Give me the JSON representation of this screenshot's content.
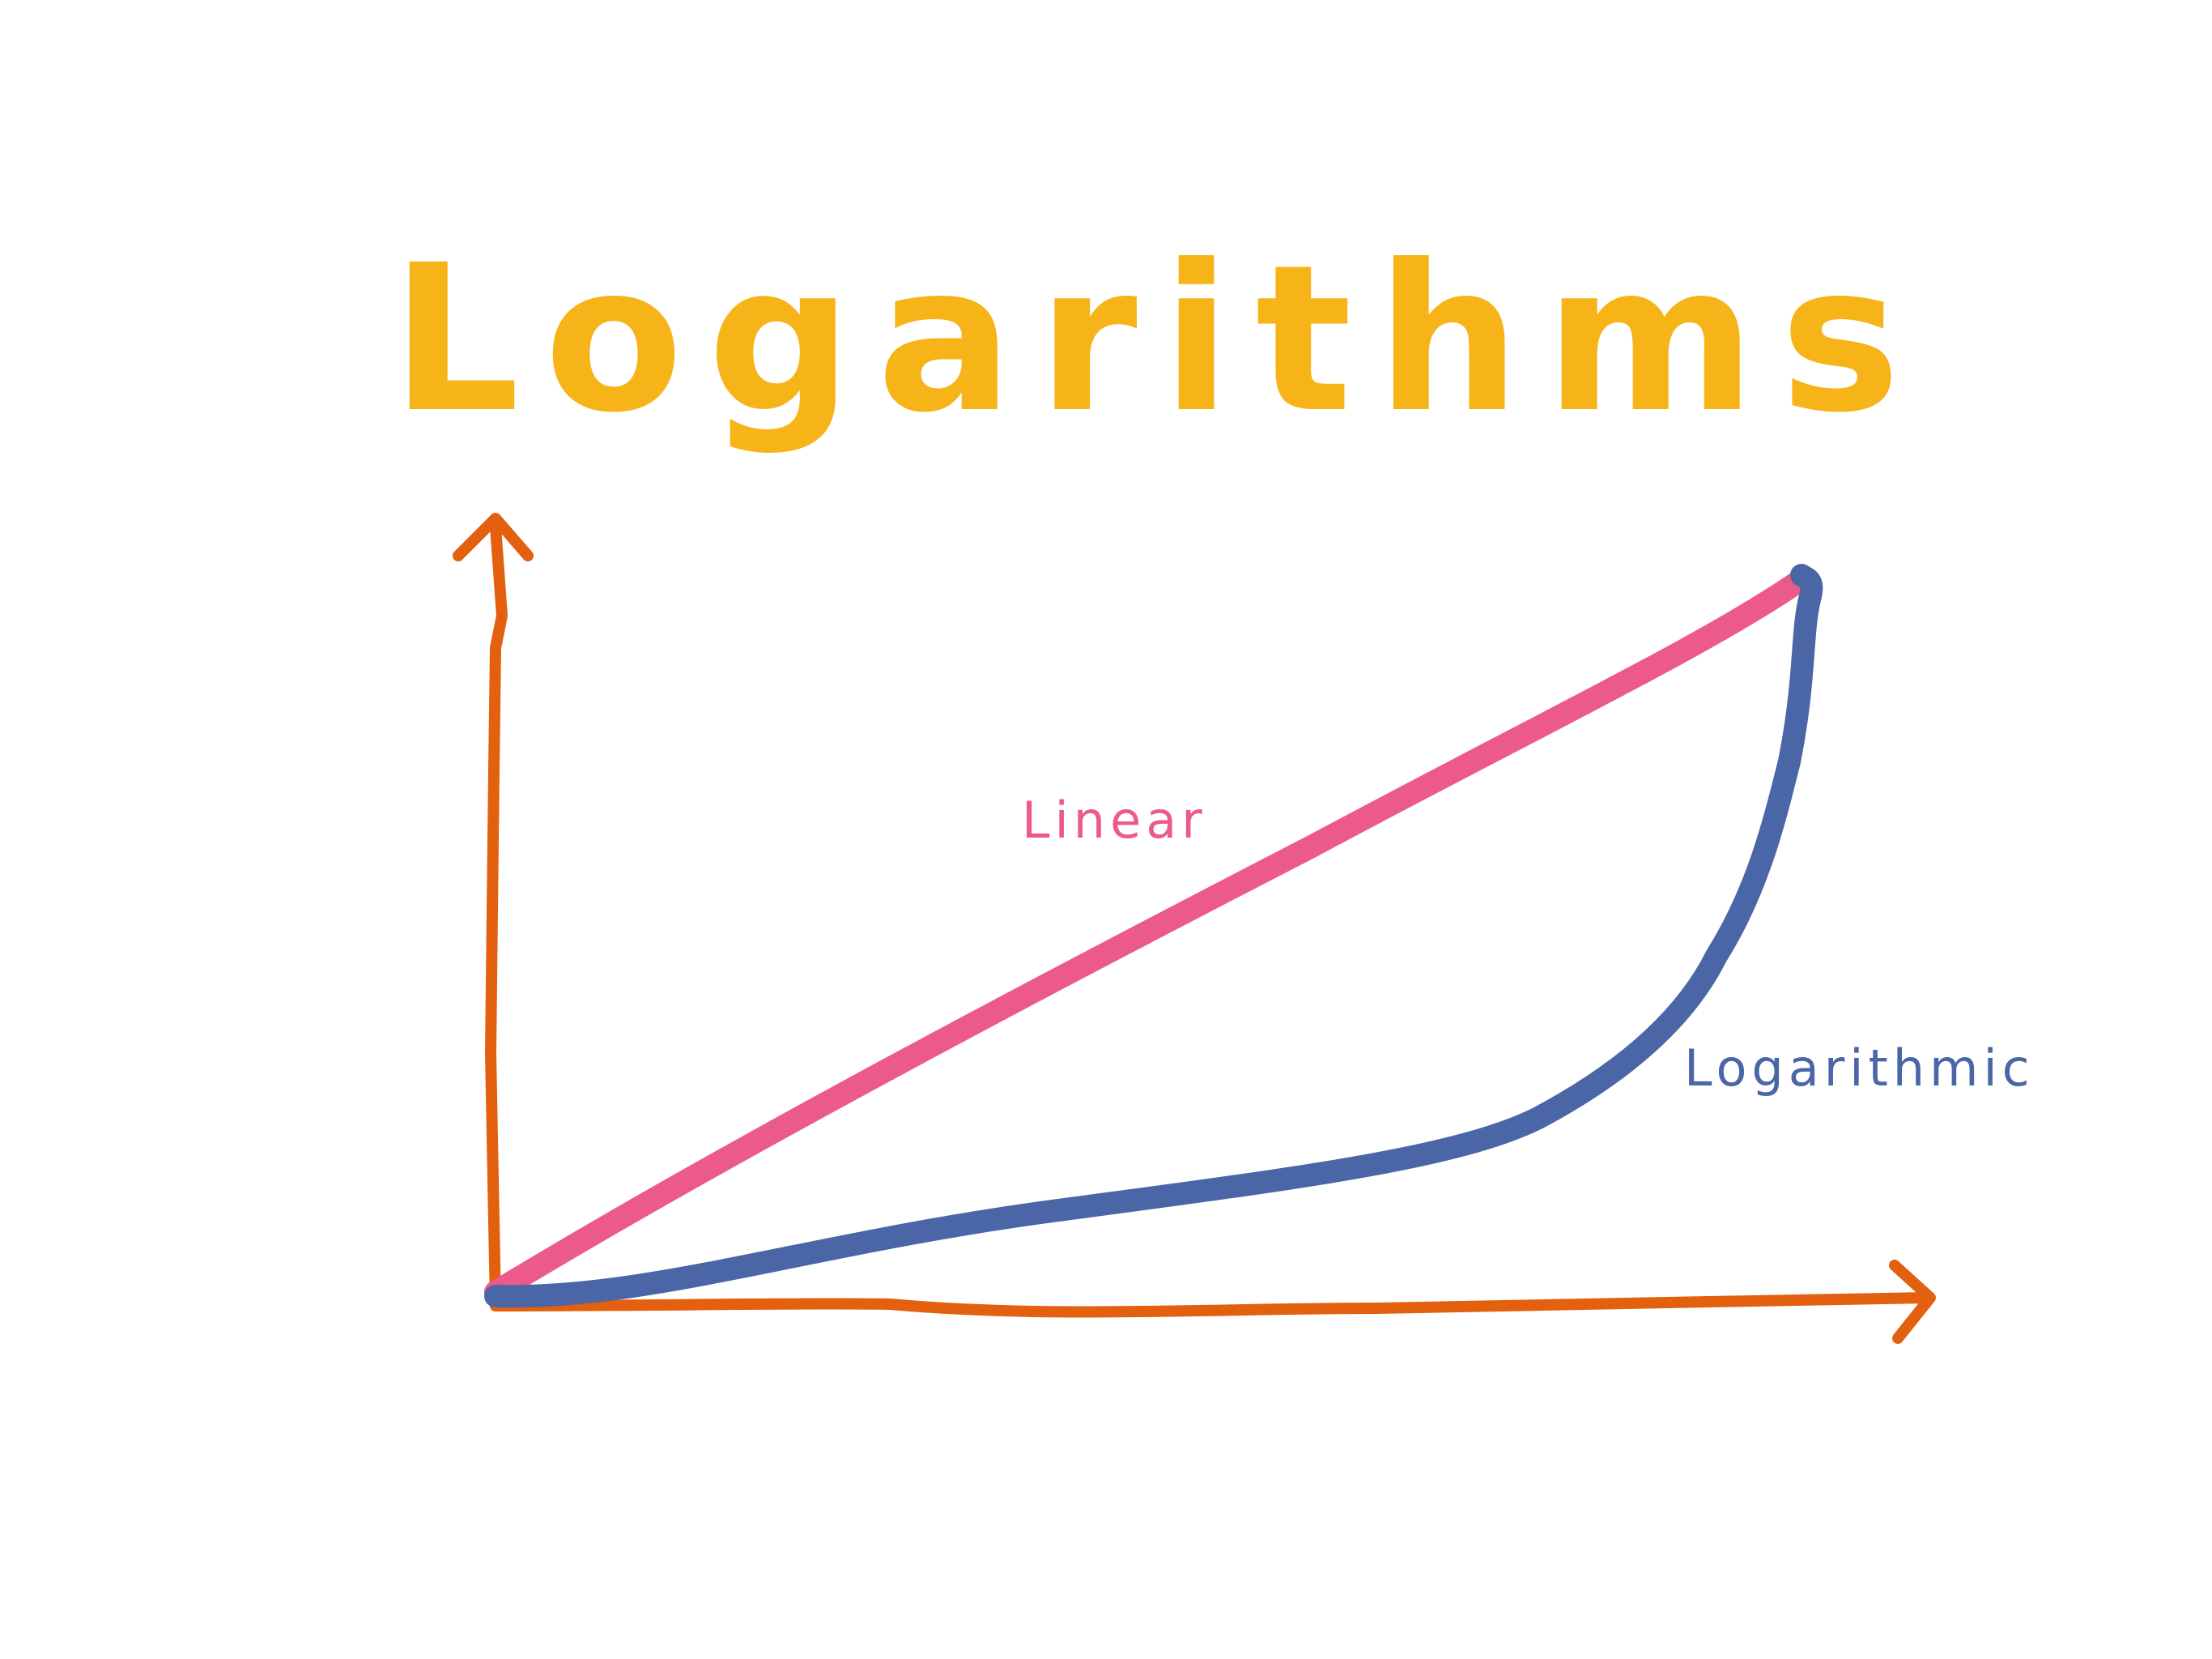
{
  "title": "Logarithms",
  "colors": {
    "title": "#f6b418",
    "axes": "#e2600e",
    "linear": "#ec5a8b",
    "logarithmic": "#4a66a6",
    "background": "#ffffff"
  },
  "curves": {
    "linear_label": "Linear",
    "logarithmic_label": "Logarithmic"
  }
}
